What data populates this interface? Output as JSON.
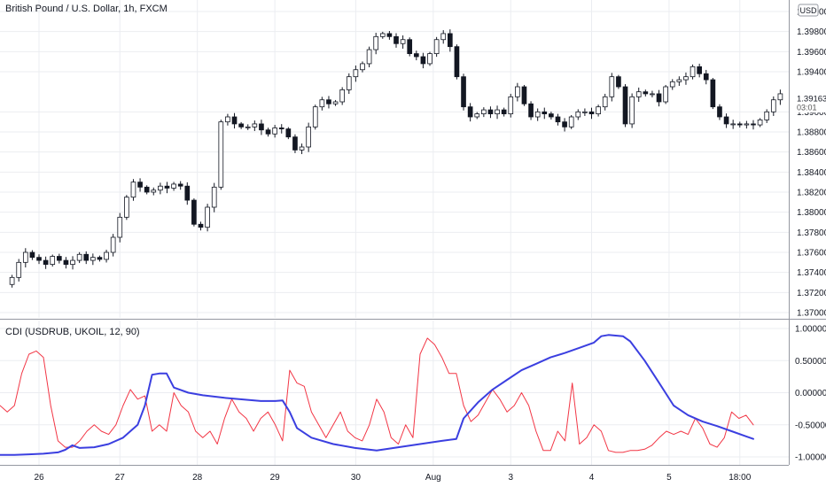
{
  "chart_data": [
    {
      "type": "candlestick",
      "title": "British Pound / U.S. Dollar, 1h, FXCM",
      "currency_badge": "USD",
      "ylim": [
        1.37,
        1.4
      ],
      "y_ticks": [
        "1.40000",
        "1.39800",
        "1.39600",
        "1.39400",
        "1.39000",
        "1.38800",
        "1.38600",
        "1.38400",
        "1.38200",
        "1.38000",
        "1.37800",
        "1.37600",
        "1.37400",
        "1.37200",
        "1.37000"
      ],
      "last_price": "1.39163",
      "countdown": "03:01",
      "grid": true,
      "close_path": [
        [
          0,
          1.3728
        ],
        [
          1,
          1.3735
        ],
        [
          2,
          1.375
        ],
        [
          3,
          1.376
        ],
        [
          4,
          1.3755
        ],
        [
          5,
          1.3752
        ],
        [
          6,
          1.3748
        ],
        [
          7,
          1.3756
        ],
        [
          8,
          1.3752
        ],
        [
          9,
          1.3748
        ],
        [
          10,
          1.3752
        ],
        [
          11,
          1.3758
        ],
        [
          12,
          1.3752
        ],
        [
          13,
          1.3755
        ],
        [
          14,
          1.3753
        ],
        [
          15,
          1.376
        ],
        [
          16,
          1.3775
        ],
        [
          17,
          1.3795
        ],
        [
          18,
          1.3815
        ],
        [
          19,
          1.383
        ],
        [
          20,
          1.3825
        ],
        [
          21,
          1.382
        ],
        [
          22,
          1.3822
        ],
        [
          23,
          1.3826
        ],
        [
          24,
          1.3824
        ],
        [
          25,
          1.3828
        ],
        [
          26,
          1.3826
        ],
        [
          27,
          1.3812
        ],
        [
          28,
          1.3788
        ],
        [
          29,
          1.3785
        ],
        [
          30,
          1.3805
        ],
        [
          31,
          1.3825
        ],
        [
          32,
          1.389
        ],
        [
          33,
          1.3895
        ],
        [
          34,
          1.3888
        ],
        [
          35,
          1.3885
        ],
        [
          36,
          1.3885
        ],
        [
          37,
          1.3888
        ],
        [
          38,
          1.3882
        ],
        [
          39,
          1.3878
        ],
        [
          40,
          1.3884
        ],
        [
          41,
          1.3883
        ],
        [
          42,
          1.3875
        ],
        [
          43,
          1.3862
        ],
        [
          44,
          1.3865
        ],
        [
          45,
          1.3885
        ],
        [
          46,
          1.3905
        ],
        [
          47,
          1.3912
        ],
        [
          48,
          1.3908
        ],
        [
          49,
          1.391
        ],
        [
          50,
          1.3922
        ],
        [
          51,
          1.3935
        ],
        [
          52,
          1.3942
        ],
        [
          53,
          1.3948
        ],
        [
          54,
          1.3962
        ],
        [
          55,
          1.3975
        ],
        [
          56,
          1.3978
        ],
        [
          57,
          1.3975
        ],
        [
          58,
          1.3968
        ],
        [
          59,
          1.3972
        ],
        [
          60,
          1.3958
        ],
        [
          61,
          1.3955
        ],
        [
          62,
          1.3948
        ],
        [
          63,
          1.3958
        ],
        [
          64,
          1.3972
        ],
        [
          65,
          1.3978
        ],
        [
          66,
          1.3965
        ],
        [
          67,
          1.3935
        ],
        [
          68,
          1.3905
        ],
        [
          69,
          1.3895
        ],
        [
          70,
          1.3898
        ],
        [
          71,
          1.3902
        ],
        [
          72,
          1.3898
        ],
        [
          73,
          1.3902
        ],
        [
          74,
          1.3898
        ],
        [
          75,
          1.3915
        ],
        [
          76,
          1.3925
        ],
        [
          77,
          1.3908
        ],
        [
          78,
          1.3895
        ],
        [
          79,
          1.39
        ],
        [
          80,
          1.3898
        ],
        [
          81,
          1.3895
        ],
        [
          82,
          1.389
        ],
        [
          83,
          1.3885
        ],
        [
          84,
          1.3895
        ],
        [
          85,
          1.39
        ],
        [
          86,
          1.39
        ],
        [
          87,
          1.3898
        ],
        [
          88,
          1.3905
        ],
        [
          89,
          1.3915
        ],
        [
          90,
          1.3935
        ],
        [
          91,
          1.3925
        ],
        [
          92,
          1.3888
        ],
        [
          93,
          1.3915
        ],
        [
          94,
          1.392
        ],
        [
          95,
          1.3918
        ],
        [
          96,
          1.3918
        ],
        [
          97,
          1.391
        ],
        [
          98,
          1.3925
        ],
        [
          99,
          1.393
        ],
        [
          100,
          1.3932
        ],
        [
          101,
          1.3935
        ],
        [
          102,
          1.3945
        ],
        [
          103,
          1.3938
        ],
        [
          104,
          1.3932
        ],
        [
          105,
          1.3905
        ],
        [
          106,
          1.3895
        ],
        [
          107,
          1.3888
        ],
        [
          108,
          1.3888
        ],
        [
          109,
          1.3887
        ],
        [
          110,
          1.3888
        ],
        [
          111,
          1.3887
        ],
        [
          112,
          1.3892
        ],
        [
          113,
          1.39
        ],
        [
          114,
          1.3912
        ],
        [
          115,
          1.3918
        ]
      ],
      "x_ticks": [
        {
          "label": "26",
          "pos": 5
        },
        {
          "label": "27",
          "pos": 17
        },
        {
          "label": "28",
          "pos": 28.5
        },
        {
          "label": "29",
          "pos": 40
        },
        {
          "label": "30",
          "pos": 52
        },
        {
          "label": "Aug",
          "pos": 63.5
        },
        {
          "label": "3",
          "pos": 75
        },
        {
          "label": "4",
          "pos": 87
        },
        {
          "label": "5",
          "pos": 98.5
        },
        {
          "label": "18:00",
          "pos": 109
        }
      ]
    },
    {
      "type": "line",
      "title": "CDI (USDRUB, UKOIL, 12, 90)",
      "ylim": [
        -1.0,
        1.0
      ],
      "y_ticks": [
        "1.00000",
        "0.50000",
        "0.00000",
        "-0.50000",
        "-1.00000"
      ],
      "grid": true,
      "series": [
        {
          "color": "#f23645",
          "points": [
            [
              0,
              -0.2
            ],
            [
              1,
              -0.3
            ],
            [
              2,
              -0.2
            ],
            [
              3,
              0.3
            ],
            [
              4,
              0.6
            ],
            [
              5,
              0.65
            ],
            [
              6,
              0.55
            ],
            [
              7,
              -0.2
            ],
            [
              8,
              -0.75
            ],
            [
              9,
              -0.85
            ],
            [
              10,
              -0.85
            ],
            [
              11,
              -0.75
            ],
            [
              12,
              -0.6
            ],
            [
              13,
              -0.5
            ],
            [
              14,
              -0.6
            ],
            [
              15,
              -0.65
            ],
            [
              16,
              -0.5
            ],
            [
              17,
              -0.2
            ],
            [
              18,
              0.05
            ],
            [
              19,
              -0.1
            ],
            [
              20,
              -0.05
            ],
            [
              21,
              -0.6
            ],
            [
              22,
              -0.5
            ],
            [
              23,
              -0.6
            ],
            [
              24,
              0.0
            ],
            [
              25,
              -0.2
            ],
            [
              26,
              -0.3
            ],
            [
              27,
              -0.6
            ],
            [
              28,
              -0.7
            ],
            [
              29,
              -0.6
            ],
            [
              30,
              -0.8
            ],
            [
              31,
              -0.4
            ],
            [
              32,
              -0.1
            ],
            [
              33,
              -0.3
            ],
            [
              34,
              -0.4
            ],
            [
              35,
              -0.6
            ],
            [
              36,
              -0.4
            ],
            [
              37,
              -0.3
            ],
            [
              38,
              -0.5
            ],
            [
              39,
              -0.75
            ],
            [
              40,
              0.35
            ],
            [
              41,
              0.15
            ],
            [
              42,
              0.1
            ],
            [
              43,
              -0.3
            ],
            [
              44,
              -0.5
            ],
            [
              45,
              -0.7
            ],
            [
              46,
              -0.5
            ],
            [
              47,
              -0.3
            ],
            [
              48,
              -0.6
            ],
            [
              49,
              -0.7
            ],
            [
              50,
              -0.75
            ],
            [
              51,
              -0.5
            ],
            [
              52,
              -0.1
            ],
            [
              53,
              -0.3
            ],
            [
              54,
              -0.7
            ],
            [
              55,
              -0.8
            ],
            [
              56,
              -0.5
            ],
            [
              57,
              -0.7
            ],
            [
              58,
              0.6
            ],
            [
              59,
              0.85
            ],
            [
              60,
              0.75
            ],
            [
              61,
              0.55
            ],
            [
              62,
              0.3
            ],
            [
              63,
              0.3
            ],
            [
              64,
              -0.2
            ],
            [
              65,
              -0.45
            ],
            [
              66,
              -0.35
            ],
            [
              67,
              -0.15
            ],
            [
              68,
              0.05
            ],
            [
              69,
              -0.1
            ],
            [
              70,
              -0.3
            ],
            [
              71,
              -0.2
            ],
            [
              72,
              0.0
            ],
            [
              73,
              -0.2
            ],
            [
              74,
              -0.6
            ],
            [
              75,
              -0.9
            ],
            [
              76,
              -0.9
            ],
            [
              77,
              -0.6
            ],
            [
              78,
              -0.75
            ],
            [
              79,
              0.15
            ],
            [
              80,
              -0.8
            ],
            [
              81,
              -0.7
            ],
            [
              82,
              -0.5
            ],
            [
              83,
              -0.6
            ],
            [
              84,
              -0.9
            ],
            [
              85,
              -0.93
            ],
            [
              86,
              -0.93
            ],
            [
              87,
              -0.9
            ],
            [
              88,
              -0.9
            ],
            [
              89,
              -0.88
            ],
            [
              90,
              -0.82
            ],
            [
              91,
              -0.7
            ],
            [
              92,
              -0.6
            ],
            [
              93,
              -0.65
            ],
            [
              94,
              -0.6
            ],
            [
              95,
              -0.65
            ],
            [
              96,
              -0.4
            ],
            [
              97,
              -0.55
            ],
            [
              98,
              -0.8
            ],
            [
              99,
              -0.85
            ],
            [
              100,
              -0.7
            ],
            [
              101,
              -0.3
            ],
            [
              102,
              -0.4
            ],
            [
              103,
              -0.35
            ],
            [
              104,
              -0.5
            ]
          ]
        },
        {
          "color": "#3b3fe0",
          "points": [
            [
              0,
              -0.97
            ],
            [
              2,
              -0.97
            ],
            [
              4,
              -0.96
            ],
            [
              6,
              -0.95
            ],
            [
              8,
              -0.93
            ],
            [
              9,
              -0.89
            ],
            [
              10,
              -0.82
            ],
            [
              11,
              -0.86
            ],
            [
              13,
              -0.85
            ],
            [
              15,
              -0.8
            ],
            [
              17,
              -0.7
            ],
            [
              19,
              -0.5
            ],
            [
              20,
              -0.2
            ],
            [
              21,
              0.28
            ],
            [
              22,
              0.3
            ],
            [
              23,
              0.3
            ],
            [
              24,
              0.08
            ],
            [
              26,
              0.0
            ],
            [
              28,
              -0.04
            ],
            [
              31,
              -0.08
            ],
            [
              33,
              -0.1
            ],
            [
              36,
              -0.13
            ],
            [
              38,
              -0.13
            ],
            [
              39,
              -0.12
            ],
            [
              40,
              -0.3
            ],
            [
              41,
              -0.55
            ],
            [
              43,
              -0.7
            ],
            [
              46,
              -0.8
            ],
            [
              49,
              -0.86
            ],
            [
              52,
              -0.9
            ],
            [
              55,
              -0.85
            ],
            [
              58,
              -0.8
            ],
            [
              61,
              -0.75
            ],
            [
              63,
              -0.72
            ],
            [
              64,
              -0.4
            ],
            [
              66,
              -0.15
            ],
            [
              68,
              0.05
            ],
            [
              70,
              0.2
            ],
            [
              72,
              0.35
            ],
            [
              74,
              0.45
            ],
            [
              76,
              0.55
            ],
            [
              78,
              0.62
            ],
            [
              80,
              0.7
            ],
            [
              82,
              0.78
            ],
            [
              83,
              0.88
            ],
            [
              84,
              0.9
            ],
            [
              86,
              0.88
            ],
            [
              87,
              0.8
            ],
            [
              89,
              0.5
            ],
            [
              91,
              0.15
            ],
            [
              93,
              -0.2
            ],
            [
              95,
              -0.35
            ],
            [
              97,
              -0.45
            ],
            [
              99,
              -0.52
            ],
            [
              101,
              -0.6
            ],
            [
              103,
              -0.68
            ],
            [
              104,
              -0.72
            ]
          ]
        }
      ]
    }
  ]
}
